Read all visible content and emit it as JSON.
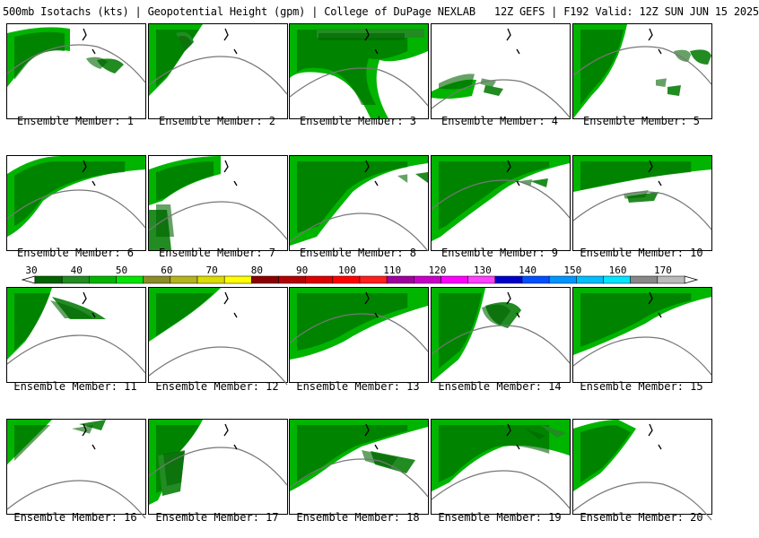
{
  "header": {
    "title": "500mb Isotachs (kts) | Geopotential Height (gpm) | College of DuPage NEXLAB   12Z GEFS | F192 Valid: 12Z SUN JUN 15 2025"
  },
  "panels": [
    {
      "label": "Ensemble Member: 1"
    },
    {
      "label": "Ensemble Member: 2"
    },
    {
      "label": "Ensemble Member: 3"
    },
    {
      "label": "Ensemble Member: 4"
    },
    {
      "label": "Ensemble Member: 5"
    },
    {
      "label": "Ensemble Member: 6"
    },
    {
      "label": "Ensemble Member: 7"
    },
    {
      "label": "Ensemble Member: 8"
    },
    {
      "label": "Ensemble Member: 9"
    },
    {
      "label": "Ensemble Member: 10"
    },
    {
      "label": "Ensemble Member: 11"
    },
    {
      "label": "Ensemble Member: 12"
    },
    {
      "label": "Ensemble Member: 13"
    },
    {
      "label": "Ensemble Member: 14"
    },
    {
      "label": "Ensemble Member: 15"
    },
    {
      "label": "Ensemble Member: 16"
    },
    {
      "label": "Ensemble Member: 17"
    },
    {
      "label": "Ensemble Member: 18"
    },
    {
      "label": "Ensemble Member: 19"
    },
    {
      "label": "Ensemble Member: 20"
    }
  ],
  "colorbar": {
    "ticks": [
      "30",
      "40",
      "50",
      "60",
      "70",
      "80",
      "90",
      "100",
      "110",
      "120",
      "130",
      "140",
      "150",
      "160",
      "170"
    ],
    "colors": [
      "#006400",
      "#228b22",
      "#00b400",
      "#00e600",
      "#8c8c28",
      "#b4b41e",
      "#dcdc00",
      "#ffff00",
      "#8c0000",
      "#b40000",
      "#dc0000",
      "#ff0000",
      "#ff1e1e",
      "#a0009f",
      "#c800c8",
      "#ff00ff",
      "#ff40ff",
      "#0000c8",
      "#0050ff",
      "#0096ff",
      "#00beff",
      "#00e6ff",
      "#888888",
      "#bbbbbb"
    ]
  },
  "style": {
    "contour_color": "#777777",
    "coast_color": "#000000"
  }
}
